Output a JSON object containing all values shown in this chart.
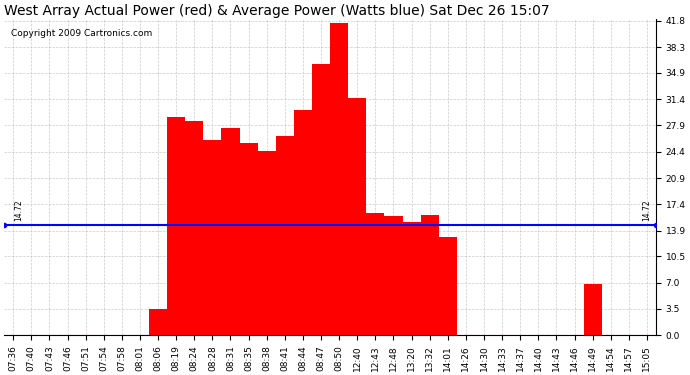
{
  "title": "West Array Actual Power (red) & Average Power (Watts blue) Sat Dec 26 15:07",
  "copyright": "Copyright 2009 Cartronics.com",
  "average_power": 14.72,
  "avg_label": "14.72",
  "bar_color": "#FF0000",
  "avg_line_color": "#0000FF",
  "background_color": "#FFFFFF",
  "grid_color": "#AAAAAA",
  "yticks": [
    0.0,
    3.5,
    7.0,
    10.5,
    13.9,
    17.4,
    20.9,
    24.4,
    27.9,
    31.4,
    34.9,
    38.3,
    41.8
  ],
  "ylim_min": 0.0,
  "ylim_max": 41.8,
  "xtick_labels": [
    "07:36",
    "07:40",
    "07:43",
    "07:46",
    "07:51",
    "07:54",
    "07:58",
    "08:01",
    "08:06",
    "08:19",
    "08:24",
    "08:28",
    "08:31",
    "08:35",
    "08:38",
    "08:41",
    "08:44",
    "08:47",
    "08:50",
    "12:40",
    "12:43",
    "12:48",
    "13:20",
    "13:32",
    "14:01",
    "14:26",
    "14:30",
    "14:33",
    "14:37",
    "14:40",
    "14:43",
    "14:46",
    "14:49",
    "14:54",
    "14:57",
    "15:05"
  ],
  "bar_values": [
    0.0,
    0.0,
    0.0,
    0.0,
    0.0,
    0.0,
    0.0,
    0.0,
    3.5,
    29.0,
    28.5,
    26.0,
    27.5,
    25.5,
    24.5,
    26.5,
    30.0,
    36.0,
    41.5,
    31.5,
    16.2,
    15.8,
    15.0,
    16.0,
    13.0,
    0.0,
    0.0,
    0.0,
    0.0,
    0.0,
    0.0,
    0.0,
    6.8,
    0.0,
    0.0,
    0.0
  ],
  "dashed_zero_color": "#FF0000",
  "title_fontsize": 10,
  "tick_fontsize": 6.5,
  "copyright_fontsize": 6.5
}
